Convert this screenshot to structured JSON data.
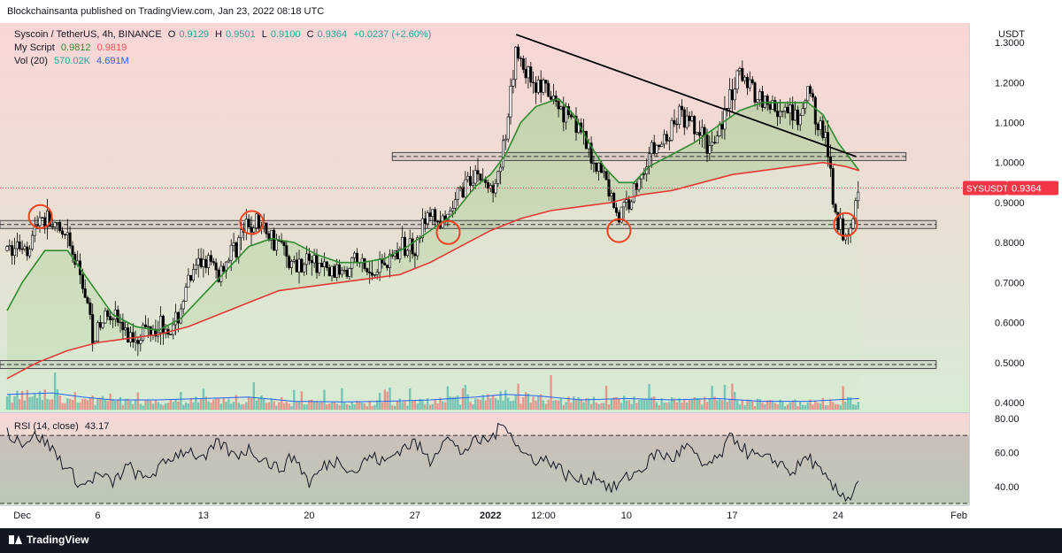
{
  "header": {
    "published": "Blockchainsanta published on TradingView.com, Jan 23, 2022 08:18 UTC"
  },
  "legend": {
    "symbol": "Syscoin / TetherUS, 4h, BINANCE",
    "o_label": "O",
    "o_val": "0.9129",
    "h_label": "H",
    "h_val": "0.9501",
    "l_label": "L",
    "l_val": "0.9100",
    "c_label": "C",
    "c_val": "0.9364",
    "change": "+0.0237 (+2.60%)",
    "script_name": "My Script",
    "script_v1": "0.9812",
    "script_v2": "0.9819",
    "vol_name": "Vol (20)",
    "vol_v1": "570.02K",
    "vol_v2": "4.691M",
    "rsi_name": "RSI (14, close)",
    "rsi_val": "43.17"
  },
  "footer": {
    "brand": "TradingView"
  },
  "colors": {
    "up": "#26a69a",
    "down": "#ef5350",
    "ema_fast": "#2e8b2e",
    "ema_slow": "#e53935",
    "vol_ma": "#2962ff",
    "rsi": "#131722",
    "circle": "#f44321"
  },
  "chart_data": [
    {
      "type": "candlestick",
      "title": "Syscoin / TetherUS, 4h, BINANCE",
      "unit": "USDT",
      "ylim": [
        0.38,
        1.34
      ],
      "yticks": [
        0.4,
        0.5,
        0.6,
        0.7,
        0.8,
        0.9,
        1.0,
        1.1,
        1.2,
        1.3
      ],
      "ytick_labels": [
        "0.4000",
        "0.5000",
        "0.6000",
        "0.7000",
        "0.8000",
        "0.9000",
        "1.0000",
        "1.1000",
        "1.2000",
        "1.3000"
      ],
      "xticks": [
        {
          "label": "Dec",
          "day": 0
        },
        {
          "label": "6",
          "day": 5
        },
        {
          "label": "13",
          "day": 12
        },
        {
          "label": "20",
          "day": 19
        },
        {
          "label": "27",
          "day": 26
        },
        {
          "label": "2022",
          "day": 31
        },
        {
          "label": "12:00",
          "day": 34.5
        },
        {
          "label": "10",
          "day": 40
        },
        {
          "label": "17",
          "day": 47
        },
        {
          "label": "24",
          "day": 54
        },
        {
          "label": "Feb",
          "day": 62
        }
      ],
      "xlim_days": [
        -1,
        62.5
      ],
      "price_path": [
        [
          -1,
          0.78
        ],
        [
          0.5,
          0.8
        ],
        [
          1.2,
          0.87
        ],
        [
          2,
          0.84
        ],
        [
          3,
          0.8
        ],
        [
          4,
          0.7
        ],
        [
          4.8,
          0.56
        ],
        [
          5.8,
          0.64
        ],
        [
          7,
          0.56
        ],
        [
          8,
          0.58
        ],
        [
          9,
          0.6
        ],
        [
          10,
          0.58
        ],
        [
          11,
          0.7
        ],
        [
          12,
          0.76
        ],
        [
          13,
          0.72
        ],
        [
          14.5,
          0.82
        ],
        [
          15.5,
          0.85
        ],
        [
          17,
          0.8
        ],
        [
          18,
          0.74
        ],
        [
          19,
          0.76
        ],
        [
          20.5,
          0.72
        ],
        [
          22,
          0.76
        ],
        [
          23,
          0.72
        ],
        [
          24.5,
          0.77
        ],
        [
          26,
          0.8
        ],
        [
          27,
          0.87
        ],
        [
          28,
          0.84
        ],
        [
          29,
          0.93
        ],
        [
          30,
          0.98
        ],
        [
          31,
          0.93
        ],
        [
          32,
          1.05
        ],
        [
          32.7,
          1.28
        ],
        [
          33.5,
          1.22
        ],
        [
          34.5,
          1.18
        ],
        [
          35.5,
          1.14
        ],
        [
          36.5,
          1.12
        ],
        [
          37.5,
          1.02
        ],
        [
          38.5,
          0.97
        ],
        [
          39.5,
          0.86
        ],
        [
          40.5,
          0.93
        ],
        [
          41.5,
          1.02
        ],
        [
          42.5,
          1.05
        ],
        [
          43.5,
          1.12
        ],
        [
          44.5,
          1.08
        ],
        [
          45.5,
          1.04
        ],
        [
          46.5,
          1.12
        ],
        [
          47.5,
          1.22
        ],
        [
          48.5,
          1.18
        ],
        [
          49.5,
          1.14
        ],
        [
          50.5,
          1.12
        ],
        [
          51.5,
          1.1
        ],
        [
          52,
          1.18
        ],
        [
          52.7,
          1.1
        ],
        [
          53.3,
          1.04
        ],
        [
          53.8,
          0.88
        ],
        [
          54.4,
          0.82
        ],
        [
          54.9,
          0.86
        ],
        [
          55.4,
          0.9364
        ]
      ],
      "ema_fast": [
        [
          -1,
          0.63
        ],
        [
          0,
          0.7
        ],
        [
          1.5,
          0.78
        ],
        [
          3,
          0.78
        ],
        [
          4.5,
          0.7
        ],
        [
          6,
          0.62
        ],
        [
          7.5,
          0.59
        ],
        [
          9,
          0.58
        ],
        [
          10.5,
          0.61
        ],
        [
          12,
          0.67
        ],
        [
          13.5,
          0.73
        ],
        [
          15,
          0.79
        ],
        [
          16.5,
          0.81
        ],
        [
          18,
          0.8
        ],
        [
          19.5,
          0.77
        ],
        [
          21,
          0.75
        ],
        [
          22.5,
          0.75
        ],
        [
          24,
          0.76
        ],
        [
          25.5,
          0.79
        ],
        [
          27,
          0.83
        ],
        [
          28.5,
          0.87
        ],
        [
          30,
          0.94
        ],
        [
          31,
          0.97
        ],
        [
          32,
          1.02
        ],
        [
          33,
          1.1
        ],
        [
          34,
          1.14
        ],
        [
          35.5,
          1.16
        ],
        [
          36.5,
          1.12
        ],
        [
          37.5,
          1.05
        ],
        [
          38.5,
          0.99
        ],
        [
          39.5,
          0.95
        ],
        [
          40.5,
          0.95
        ],
        [
          41.5,
          0.99
        ],
        [
          43,
          1.02
        ],
        [
          44.5,
          1.05
        ],
        [
          46,
          1.09
        ],
        [
          47.5,
          1.13
        ],
        [
          49,
          1.15
        ],
        [
          50.5,
          1.15
        ],
        [
          52,
          1.15
        ],
        [
          53,
          1.12
        ],
        [
          54,
          1.05
        ],
        [
          55.4,
          0.98
        ]
      ],
      "ema_slow": [
        [
          -1,
          0.46
        ],
        [
          1,
          0.5
        ],
        [
          3,
          0.53
        ],
        [
          5,
          0.55
        ],
        [
          7,
          0.56
        ],
        [
          9,
          0.57
        ],
        [
          11,
          0.59
        ],
        [
          13,
          0.62
        ],
        [
          15,
          0.65
        ],
        [
          17,
          0.68
        ],
        [
          19,
          0.69
        ],
        [
          21,
          0.7
        ],
        [
          23,
          0.71
        ],
        [
          25,
          0.72
        ],
        [
          27,
          0.75
        ],
        [
          29,
          0.79
        ],
        [
          31,
          0.83
        ],
        [
          33,
          0.86
        ],
        [
          35,
          0.88
        ],
        [
          37,
          0.89
        ],
        [
          39,
          0.9
        ],
        [
          41,
          0.92
        ],
        [
          43,
          0.93
        ],
        [
          45,
          0.95
        ],
        [
          47,
          0.97
        ],
        [
          49,
          0.98
        ],
        [
          51,
          0.99
        ],
        [
          53,
          1.0
        ],
        [
          54.5,
          0.99
        ],
        [
          55.4,
          0.98
        ]
      ],
      "levels": [
        {
          "low": 0.835,
          "high": 0.855
        },
        {
          "low": 1.005,
          "high": 1.025
        },
        {
          "low": 0.485,
          "high": 0.505
        }
      ],
      "trendline": [
        [
          32.7,
          1.32
        ],
        [
          55.2,
          1.015
        ]
      ],
      "circles": [
        {
          "day": 1.2,
          "price": 0.865
        },
        {
          "day": 15.2,
          "price": 0.85
        },
        {
          "day": 28.2,
          "price": 0.825
        },
        {
          "day": 39.5,
          "price": 0.83
        },
        {
          "day": 54.5,
          "price": 0.845
        }
      ],
      "last_price": {
        "label": "SYSUSDT",
        "value": "0.9364",
        "price": 0.9364
      }
    },
    {
      "type": "bar",
      "title": "Vol (20)",
      "note": "volume bars with 20-period moving average (no axis labels)",
      "relative_ma": [
        [
          -1,
          0.55
        ],
        [
          2,
          0.6
        ],
        [
          4,
          0.45
        ],
        [
          6,
          0.35
        ],
        [
          9,
          0.35
        ],
        [
          12,
          0.4
        ],
        [
          15,
          0.45
        ],
        [
          18,
          0.3
        ],
        [
          21,
          0.28
        ],
        [
          24,
          0.3
        ],
        [
          27,
          0.35
        ],
        [
          30,
          0.45
        ],
        [
          32,
          0.55
        ],
        [
          34,
          0.5
        ],
        [
          37,
          0.35
        ],
        [
          40,
          0.4
        ],
        [
          43,
          0.35
        ],
        [
          46,
          0.4
        ],
        [
          49,
          0.3
        ],
        [
          52,
          0.3
        ],
        [
          55.4,
          0.4
        ]
      ]
    },
    {
      "type": "line",
      "title": "RSI (14, close)",
      "ylim": [
        30,
        82
      ],
      "yticks": [
        40,
        60,
        80
      ],
      "ytick_labels": [
        "40.00",
        "60.00",
        "80.00"
      ],
      "bands": [
        30,
        70
      ],
      "last_value": 43.17,
      "path": [
        [
          -1,
          72
        ],
        [
          0,
          66
        ],
        [
          1,
          70
        ],
        [
          2,
          62
        ],
        [
          3,
          50
        ],
        [
          4,
          40
        ],
        [
          5,
          47
        ],
        [
          6,
          42
        ],
        [
          7,
          52
        ],
        [
          8,
          44
        ],
        [
          9,
          50
        ],
        [
          10,
          58
        ],
        [
          11,
          62
        ],
        [
          12,
          55
        ],
        [
          13,
          66
        ],
        [
          14,
          58
        ],
        [
          15,
          62
        ],
        [
          16,
          56
        ],
        [
          17,
          50
        ],
        [
          18,
          58
        ],
        [
          19,
          42
        ],
        [
          20,
          52
        ],
        [
          21,
          56
        ],
        [
          22,
          48
        ],
        [
          23,
          58
        ],
        [
          24,
          54
        ],
        [
          25,
          62
        ],
        [
          26,
          66
        ],
        [
          27,
          55
        ],
        [
          28,
          70
        ],
        [
          29,
          60
        ],
        [
          30,
          66
        ],
        [
          31,
          68
        ],
        [
          32,
          78
        ],
        [
          33,
          60
        ],
        [
          34,
          56
        ],
        [
          35,
          55
        ],
        [
          36,
          47
        ],
        [
          37,
          43
        ],
        [
          38,
          47
        ],
        [
          39,
          38
        ],
        [
          40,
          45
        ],
        [
          41,
          50
        ],
        [
          42,
          60
        ],
        [
          43,
          56
        ],
        [
          44,
          64
        ],
        [
          45,
          52
        ],
        [
          46,
          55
        ],
        [
          47,
          70
        ],
        [
          48,
          60
        ],
        [
          49,
          56
        ],
        [
          50,
          55
        ],
        [
          51,
          48
        ],
        [
          52,
          58
        ],
        [
          53,
          46
        ],
        [
          54,
          36
        ],
        [
          54.8,
          34
        ],
        [
          55.4,
          43.17
        ]
      ]
    }
  ]
}
